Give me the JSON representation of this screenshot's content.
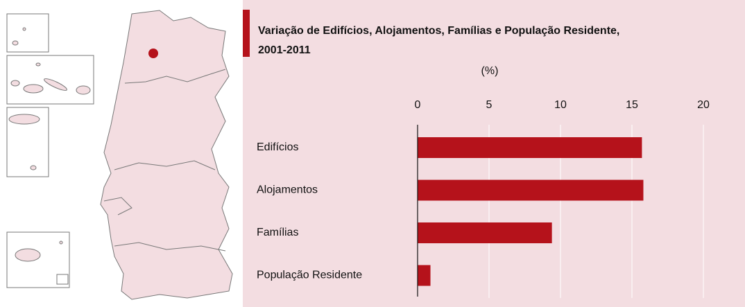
{
  "chart_data": {
    "type": "bar",
    "orientation": "horizontal",
    "title": [
      "Variação de Edifícios, Alojamentos, Famílias e População Residente,",
      "2001-2011"
    ],
    "x_label": "(%)",
    "categories": [
      "Edifícios",
      "Alojamentos",
      "Famílias",
      "População Residente"
    ],
    "values": [
      15.7,
      15.8,
      9.4,
      0.9
    ],
    "color": "#b5121b",
    "xlim": [
      0,
      20
    ],
    "xticks": [
      0,
      5,
      10,
      15,
      20
    ],
    "grid": true
  }
}
